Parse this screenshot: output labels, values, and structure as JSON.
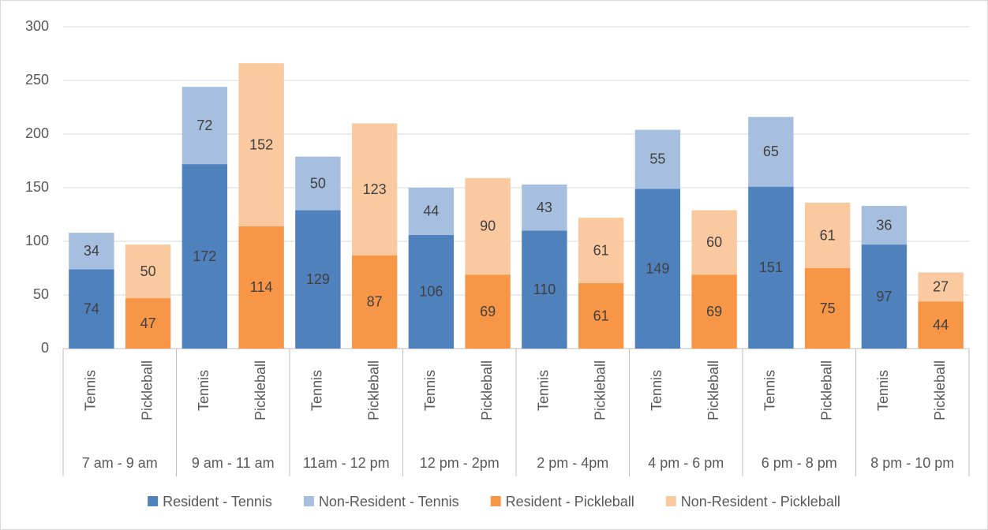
{
  "chart_data": {
    "type": "stacked_bar",
    "categories": [
      "Tennis",
      "Pickleball",
      "Tennis",
      "Pickleball",
      "Tennis",
      "Pickleball",
      "Tennis",
      "Pickleball",
      "Tennis",
      "Pickleball",
      "Tennis",
      "Pickleball",
      "Tennis",
      "Pickleball",
      "Tennis",
      "Pickleball"
    ],
    "groups": [
      "7 am - 9 am",
      "9 am - 11 am",
      "11am - 12 pm",
      "12 pm - 2pm",
      "2 pm - 4pm",
      "4 pm - 6 pm",
      "6 pm - 8 pm",
      "8 pm - 10 pm"
    ],
    "series": [
      {
        "name": "Resident - Tennis",
        "color": "#4f81bd",
        "values": [
          74,
          null,
          172,
          null,
          129,
          null,
          106,
          null,
          110,
          null,
          149,
          null,
          151,
          null,
          97,
          null
        ]
      },
      {
        "name": "Non-Resident - Tennis",
        "color": "#a7bfdf",
        "values": [
          34,
          null,
          72,
          null,
          50,
          null,
          44,
          null,
          43,
          null,
          55,
          null,
          65,
          null,
          36,
          null
        ]
      },
      {
        "name": "Resident - Pickleball",
        "color": "#f79646",
        "values": [
          null,
          47,
          null,
          114,
          null,
          87,
          null,
          69,
          null,
          61,
          null,
          69,
          null,
          75,
          null,
          44
        ]
      },
      {
        "name": "Non-Resident - Pickleball",
        "color": "#fac9a0",
        "values": [
          null,
          50,
          null,
          152,
          null,
          123,
          null,
          90,
          null,
          61,
          null,
          60,
          null,
          61,
          null,
          27
        ]
      }
    ],
    "ylim": [
      0,
      300
    ],
    "yticks": [
      0,
      50,
      100,
      150,
      200,
      250,
      300
    ],
    "grid": true,
    "legend": "bottom"
  }
}
